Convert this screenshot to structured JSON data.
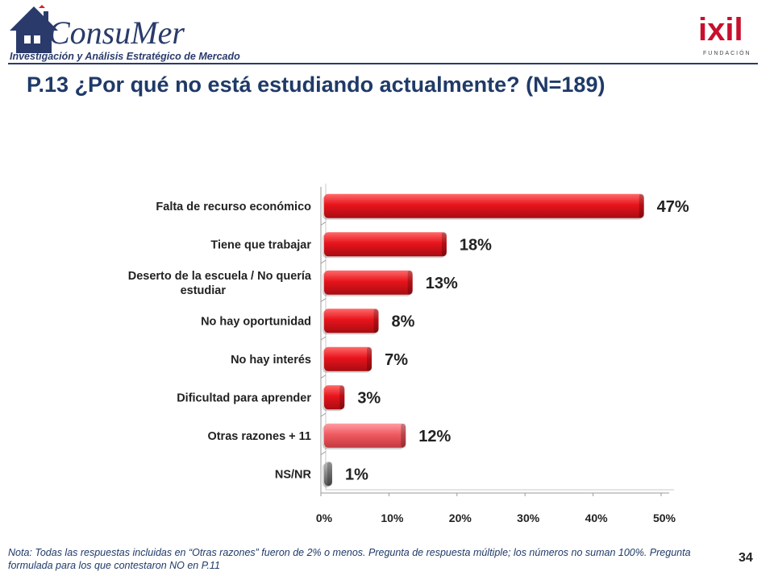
{
  "header": {
    "brand_name": "ConsuMer",
    "brand_tagline": "Investigación y Análisis Estratégico de Mercados",
    "partner_name": "ixil",
    "partner_sub": "FUNDACIÓN"
  },
  "title": "P.13 ¿Por qué no está estudiando actualmente? (N=189)",
  "chart_data": {
    "type": "bar",
    "orientation": "horizontal",
    "categories": [
      "Falta de recurso económico",
      "Tiene que trabajar",
      "Deserto de la escuela / No quería estudiar",
      "No hay oportunidad",
      "No hay interés",
      "Dificultad para aprender",
      "Otras razones + 11",
      "NS/NR"
    ],
    "category_lines": [
      [
        "Falta de recurso económico"
      ],
      [
        "Tiene que trabajar"
      ],
      [
        "Deserto de la escuela / No quería",
        "estudiar"
      ],
      [
        "No hay oportunidad"
      ],
      [
        "No hay interés"
      ],
      [
        "Dificultad para aprender"
      ],
      [
        "Otras razones + 11"
      ],
      [
        "NS/NR"
      ]
    ],
    "values": [
      47,
      18,
      13,
      8,
      7,
      3,
      12,
      1
    ],
    "value_labels": [
      "47%",
      "18%",
      "13%",
      "8%",
      "7%",
      "3%",
      "12%",
      "1%"
    ],
    "bar_colors": [
      "#e8141c",
      "#e8141c",
      "#e8141c",
      "#e8141c",
      "#e8141c",
      "#e8141c",
      "#ef5a60",
      "#8a8a8a"
    ],
    "xlim": [
      0,
      50
    ],
    "xticks": [
      "0%",
      "10%",
      "20%",
      "30%",
      "40%",
      "50%"
    ],
    "grid": false,
    "xlabel": "",
    "ylabel": ""
  },
  "footnote": "Nota: Todas las respuestas incluidas en “Otras razones” fueron de 2% o menos. Pregunta de respuesta múltiple; los números no suman 100%. Pregunta formulada para los que contestaron NO en P.11",
  "page_number": "34"
}
